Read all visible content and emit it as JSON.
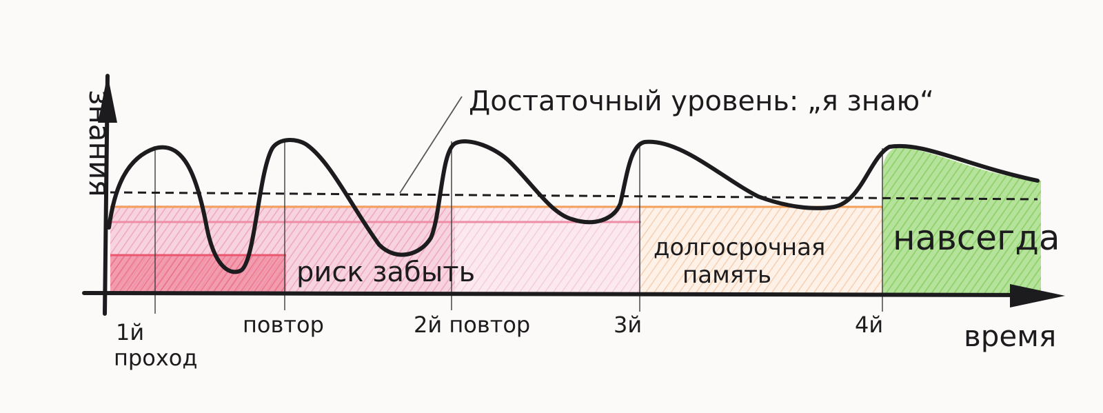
{
  "axes": {
    "y_label": "знания",
    "x_label": "время"
  },
  "annotation": "Достаточный уровень: „я знаю“",
  "zones": {
    "risk": "риск забыть",
    "long_term": [
      "долгосрочная",
      "память"
    ],
    "forever": "навсегда"
  },
  "ticks": [
    "1й",
    "проход",
    "повтор",
    "2й повтор",
    "3й",
    "4й"
  ],
  "colors": {
    "ink": "#1c1b1d",
    "risk_pink": "#f2b9cc",
    "risk_red": "#e9586f",
    "orange": "#f3a05a",
    "green": "#8fd06a"
  }
}
